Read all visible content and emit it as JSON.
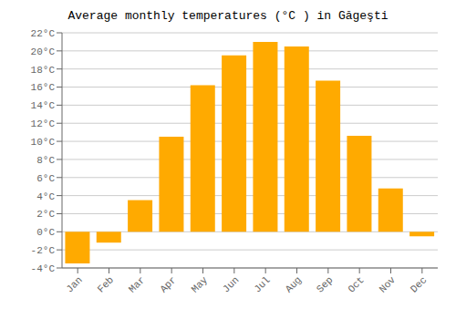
{
  "chart_data": {
    "type": "bar",
    "title": "Average monthly temperatures (°C ) in Găgeşti",
    "categories": [
      "Jan",
      "Feb",
      "Mar",
      "Apr",
      "May",
      "Jun",
      "Jul",
      "Aug",
      "Sep",
      "Oct",
      "Nov",
      "Dec"
    ],
    "values": [
      -3.5,
      -1.2,
      3.5,
      10.5,
      16.2,
      19.5,
      21.0,
      20.5,
      16.7,
      10.6,
      4.8,
      -0.5
    ],
    "color": "#FFAA00",
    "ylim": [
      -4,
      22
    ],
    "yticks": [
      {
        "value": -4,
        "label": "-4°C"
      },
      {
        "value": -2,
        "label": "-2°C"
      },
      {
        "value": 0,
        "label": "0°C"
      },
      {
        "value": 2,
        "label": "2°C"
      },
      {
        "value": 4,
        "label": "4°C"
      },
      {
        "value": 6,
        "label": "6°C"
      },
      {
        "value": 8,
        "label": "8°C"
      },
      {
        "value": 10,
        "label": "10°C"
      },
      {
        "value": 12,
        "label": "12°C"
      },
      {
        "value": 14,
        "label": "14°C"
      },
      {
        "value": 16,
        "label": "16°C"
      },
      {
        "value": 18,
        "label": "18°C"
      },
      {
        "value": 20,
        "label": "20°C"
      },
      {
        "value": 22,
        "label": "22°C"
      }
    ],
    "grid": true
  }
}
